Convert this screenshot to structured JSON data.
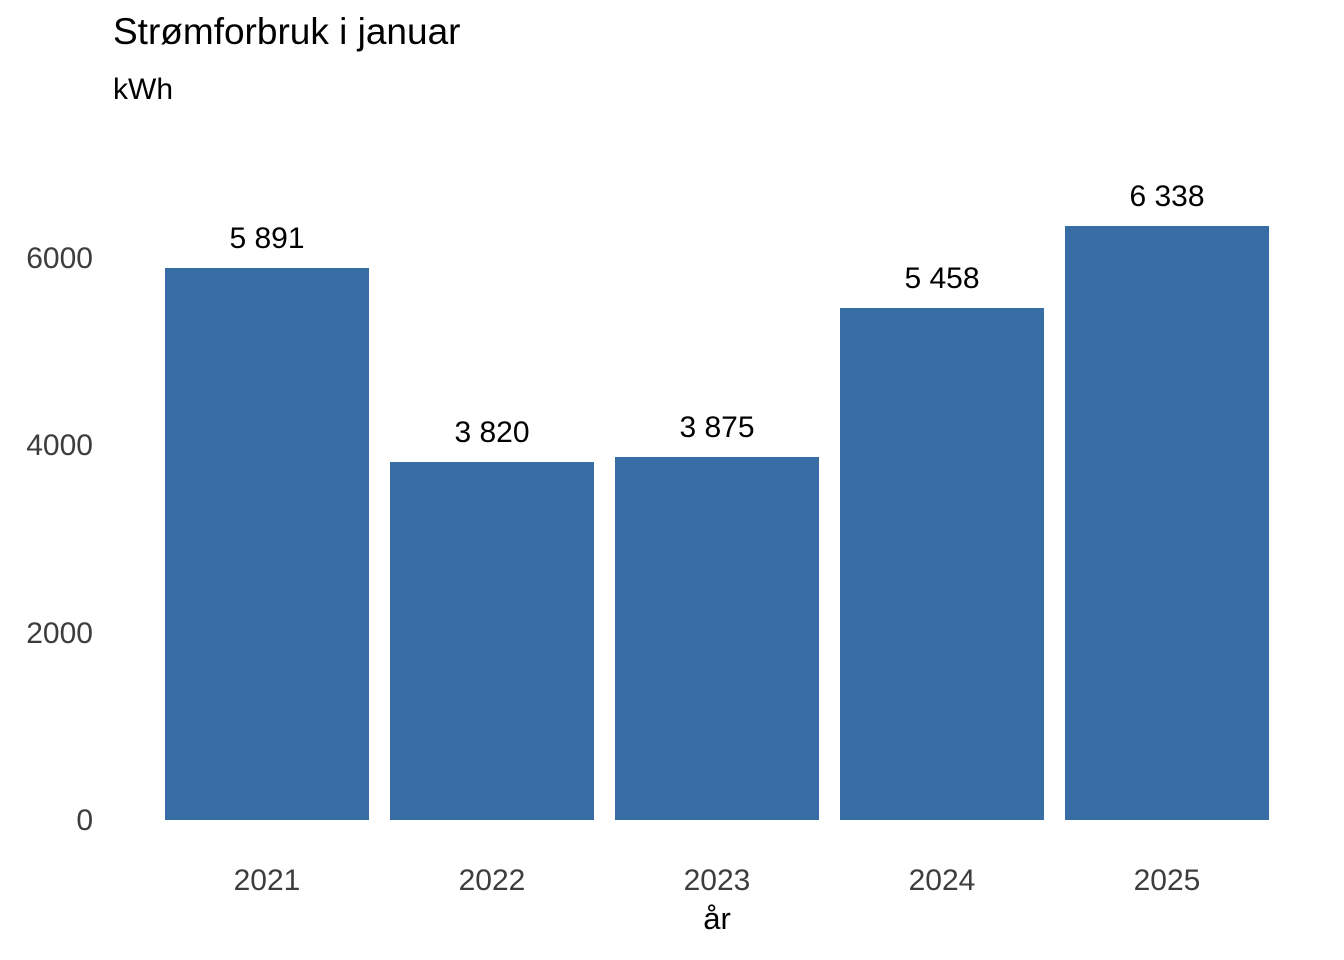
{
  "chart_data": {
    "type": "bar",
    "title": "Strømforbruk i januar",
    "ylabel": "kWh",
    "xlabel": "år",
    "categories": [
      "2021",
      "2022",
      "2023",
      "2024",
      "2025"
    ],
    "values": [
      5891,
      3820,
      3875,
      5458,
      6338
    ],
    "value_labels": [
      "5 891",
      "3 820",
      "3 875",
      "5 458",
      "6 338"
    ],
    "yticks": [
      0,
      2000,
      4000,
      6000
    ],
    "ytick_labels": [
      "0",
      "2000",
      "4000",
      "6000"
    ],
    "ylim": [
      0,
      6400
    ],
    "grid": "off",
    "legend": "none",
    "bar_color": "#376CA5",
    "tick_text_color": "#3d3d3d",
    "label_text_color": "#000000"
  }
}
